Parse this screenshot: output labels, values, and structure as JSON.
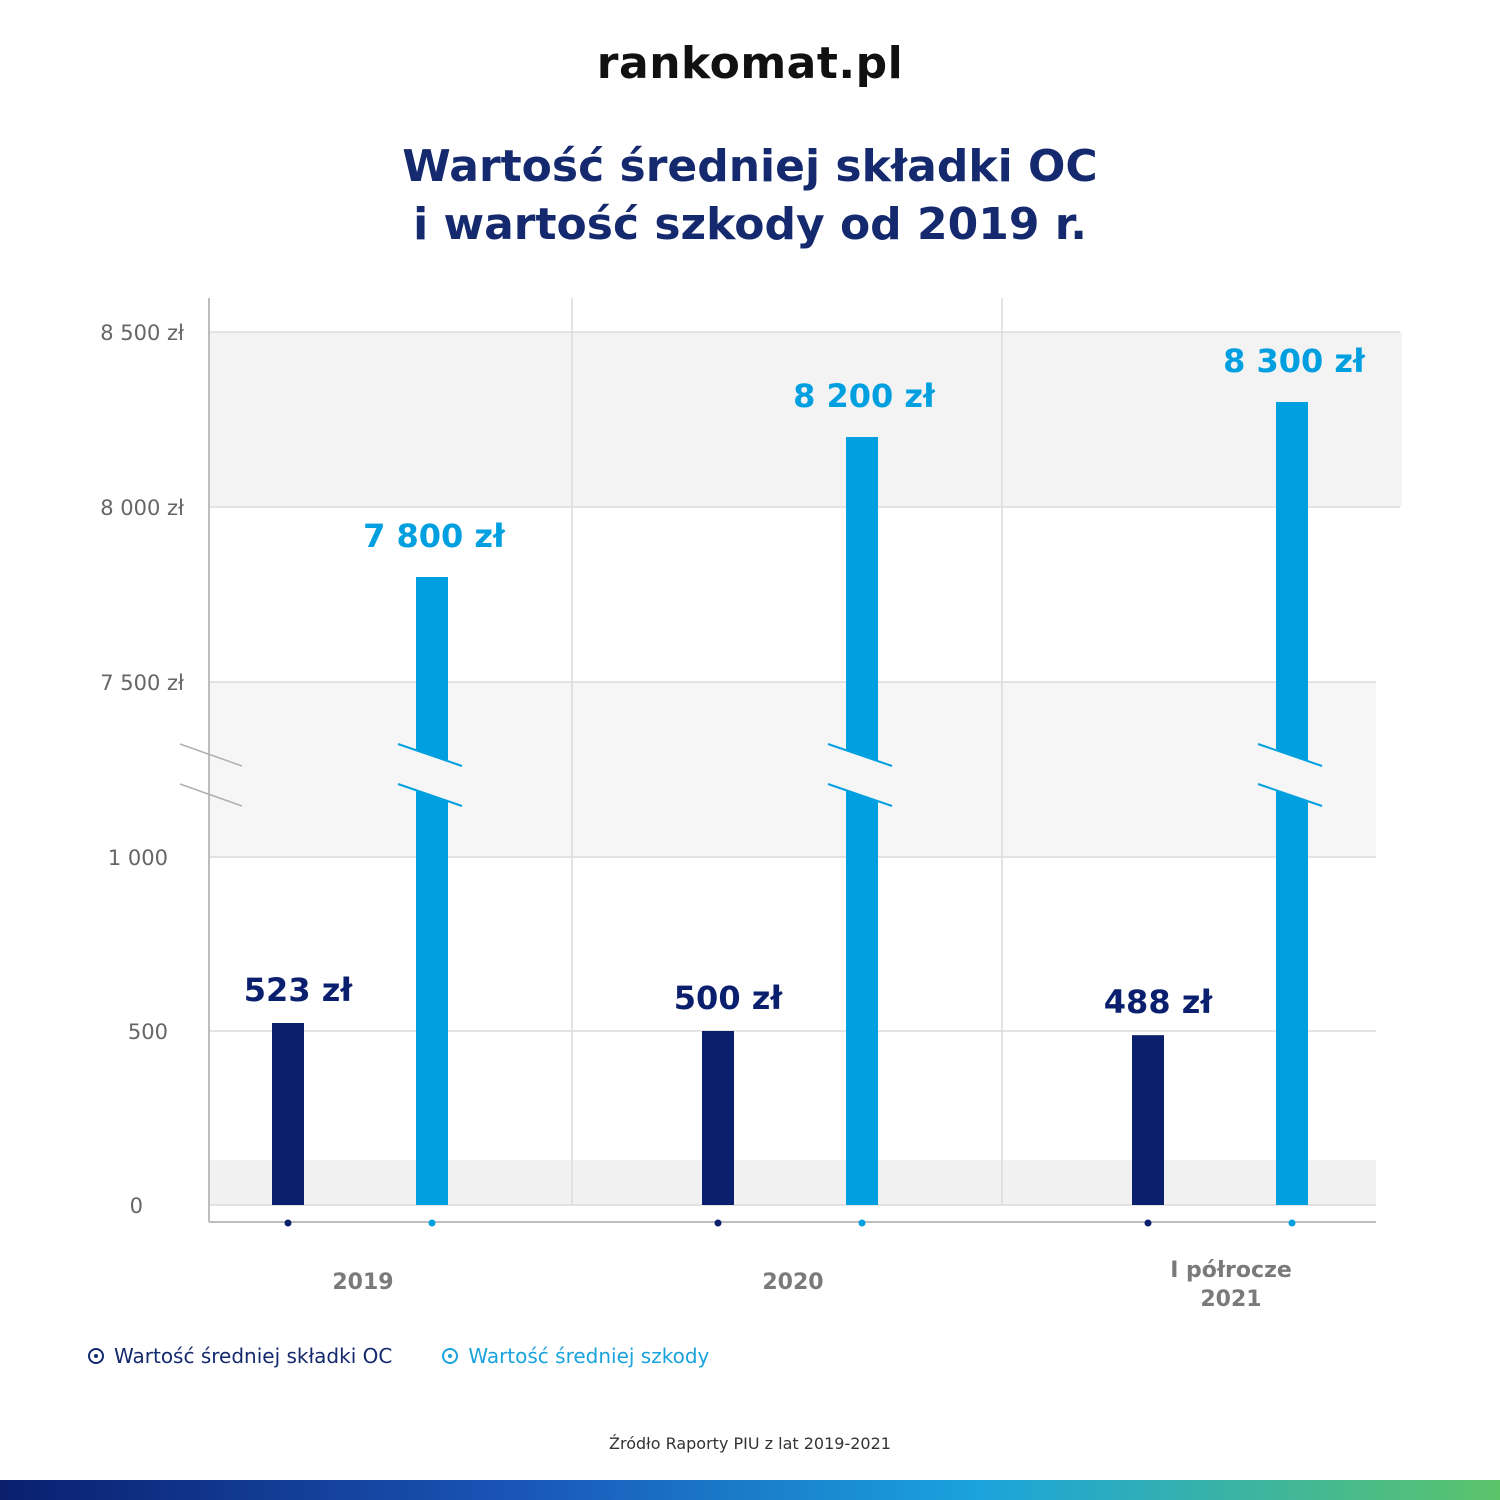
{
  "brand": {
    "logo": "rankomat.pl"
  },
  "title_lines": [
    "Wartość średniej składki OC",
    "i wartość szkody od 2019 r."
  ],
  "colors": {
    "oc": "#0a1f6e",
    "szkoda": "#00a0e0",
    "title": "#14296e"
  },
  "chart_data": {
    "type": "bar",
    "categories": [
      "2019",
      "2020",
      "I półrocze 2021"
    ],
    "series": [
      {
        "name": "Wartość średniej składki OC",
        "values": [
          523,
          500,
          488
        ],
        "labels": [
          "523 zł",
          "500 zł",
          "488 zł"
        ]
      },
      {
        "name": "Wartość średniej szkody",
        "values": [
          7800,
          8200,
          8300
        ],
        "labels": [
          "7 800 zł",
          "8 200 zł",
          "8 300 zł"
        ]
      }
    ],
    "y_axis": {
      "broken": true,
      "lower_range": [
        0,
        1000
      ],
      "upper_range": [
        7500,
        8500
      ],
      "ticks_lower": [
        "0",
        "500",
        "1 000"
      ],
      "ticks_upper": [
        "7 500 zł",
        "8 000 zł",
        "8 500 zł"
      ]
    },
    "grid": true,
    "legend_position": "bottom-left"
  },
  "legend": [
    {
      "label": "Wartość średniej składki OC"
    },
    {
      "label": "Wartość średniej szkody"
    }
  ],
  "source": "Źródło Raporty PIU z lat 2019-2021"
}
